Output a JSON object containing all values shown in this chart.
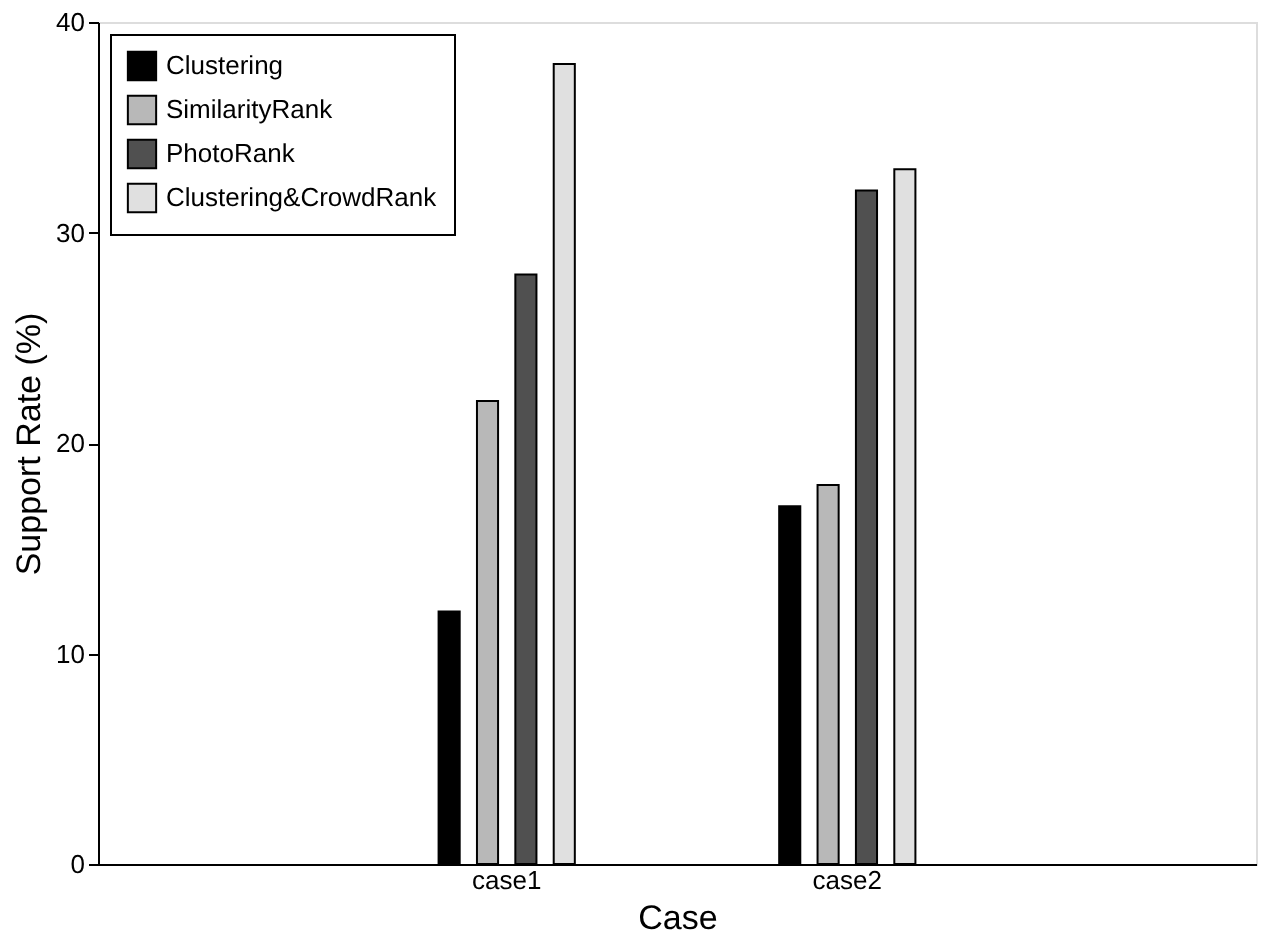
{
  "chart_data": {
    "type": "bar",
    "xlabel": "Case",
    "ylabel": "Support Rate (%)",
    "categories": [
      "case1",
      "case2"
    ],
    "series": [
      {
        "name": "Clustering",
        "color": "#000000",
        "values": [
          12,
          17
        ]
      },
      {
        "name": "SimilarityRank",
        "color": "#b8b8b8",
        "values": [
          22,
          18
        ]
      },
      {
        "name": "PhotoRank",
        "color": "#505050",
        "values": [
          28,
          32
        ]
      },
      {
        "name": "Clustering&CrowdRank",
        "color": "#e0e0e0",
        "values": [
          38,
          33
        ]
      }
    ],
    "ylim": [
      0,
      40
    ],
    "yticks": [
      0,
      10,
      20,
      30,
      40
    ],
    "legend": "top left",
    "grid": false
  }
}
